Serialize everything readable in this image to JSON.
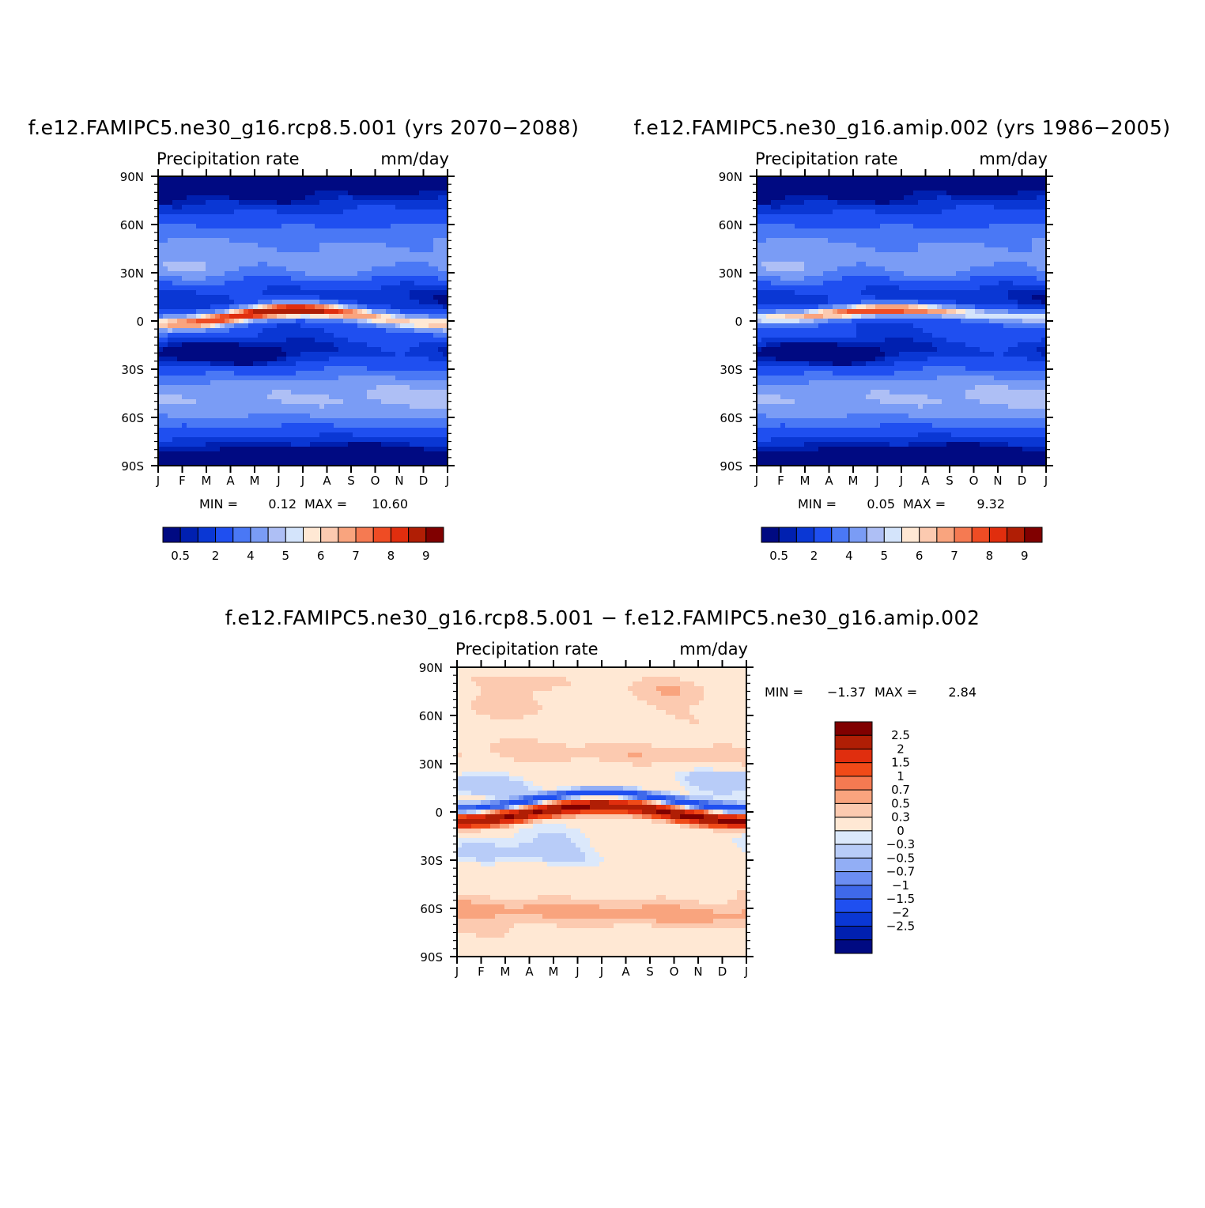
{
  "chart_data": [
    {
      "id": "panel-rcp85",
      "type": "heatmap",
      "title": "f.e12.FAMIPC5.ne30_g16.rcp8.5.001 (yrs 2070−2088)",
      "left_label": "Precipitation rate",
      "right_label": "mm/day",
      "x_ticks": [
        "J",
        "F",
        "M",
        "A",
        "M",
        "J",
        "J",
        "A",
        "S",
        "O",
        "N",
        "D",
        "J"
      ],
      "y_ticks": [
        "90N",
        "60N",
        "30N",
        "0",
        "30S",
        "60S",
        "90S"
      ],
      "ylim": [
        -90,
        90
      ],
      "min_label": "MIN =",
      "min_value": "0.12",
      "max_label": "MAX =",
      "max_value": "10.60",
      "itcz": {
        "lat_jan": -2,
        "lat_jul": 7,
        "width": 7,
        "peak": 10.6
      },
      "colorbar": {
        "colors": [
          "#000a82",
          "#0020b0",
          "#0a37d4",
          "#1f4ff0",
          "#4a78f5",
          "#7a9cf5",
          "#aebff5",
          "#d4e4fb",
          "#ffe8d4",
          "#fccab0",
          "#f9a47e",
          "#f57a52",
          "#ef4c24",
          "#e02e0e",
          "#b01e05",
          "#800000"
        ],
        "labels": [
          "0.5",
          "2",
          "4",
          "5",
          "6",
          "7",
          "8",
          "9"
        ]
      }
    },
    {
      "id": "panel-amip",
      "type": "heatmap",
      "title": "f.e12.FAMIPC5.ne30_g16.amip.002 (yrs 1986−2005)",
      "left_label": "Precipitation rate",
      "right_label": "mm/day",
      "x_ticks": [
        "J",
        "F",
        "M",
        "A",
        "M",
        "J",
        "J",
        "A",
        "S",
        "O",
        "N",
        "D",
        "J"
      ],
      "y_ticks": [
        "90N",
        "60N",
        "30N",
        "0",
        "30S",
        "60S",
        "90S"
      ],
      "ylim": [
        -90,
        90
      ],
      "min_label": "MIN =",
      "min_value": "0.05",
      "max_label": "MAX =",
      "max_value": "9.32",
      "itcz": {
        "lat_jan": 2,
        "lat_jul": 7,
        "width": 6,
        "peak": 9.3
      },
      "colorbar": {
        "colors": [
          "#000a82",
          "#0020b0",
          "#0a37d4",
          "#1f4ff0",
          "#4a78f5",
          "#7a9cf5",
          "#aebff5",
          "#d4e4fb",
          "#ffe8d4",
          "#fccab0",
          "#f9a47e",
          "#f57a52",
          "#ef4c24",
          "#e02e0e",
          "#b01e05",
          "#800000"
        ],
        "labels": [
          "0.5",
          "2",
          "4",
          "5",
          "6",
          "7",
          "8",
          "9"
        ]
      }
    },
    {
      "id": "panel-diff",
      "type": "heatmap",
      "title": "f.e12.FAMIPC5.ne30_g16.rcp8.5.001 − f.e12.FAMIPC5.ne30_g16.amip.002",
      "left_label": "Precipitation rate",
      "right_label": "mm/day",
      "x_ticks": [
        "J",
        "F",
        "M",
        "A",
        "M",
        "J",
        "J",
        "A",
        "S",
        "O",
        "N",
        "D",
        "J"
      ],
      "y_ticks": [
        "90N",
        "60N",
        "30N",
        "0",
        "30S",
        "60S",
        "90S"
      ],
      "ylim": [
        -90,
        90
      ],
      "min_label": "MIN =",
      "min_value": "−1.37",
      "max_label": "MAX =",
      "max_value": "2.84",
      "colorbar": {
        "colors_top_to_bottom": [
          "#800000",
          "#b01e05",
          "#e02e0e",
          "#f04a18",
          "#f57a52",
          "#f9a47e",
          "#fccab0",
          "#ffe8d4",
          "#dbe8fb",
          "#b8ccf8",
          "#92aef5",
          "#6c8ef2",
          "#3f69ea",
          "#1f4ff0",
          "#0a37d4",
          "#0020b0",
          "#000a82"
        ],
        "labels": [
          "2.5",
          "2",
          "1.5",
          "1",
          "0.7",
          "0.5",
          "0.3",
          "0",
          "−0.3",
          "−0.5",
          "−0.7",
          "−1",
          "−1.5",
          "−2",
          "−2.5"
        ]
      }
    }
  ]
}
